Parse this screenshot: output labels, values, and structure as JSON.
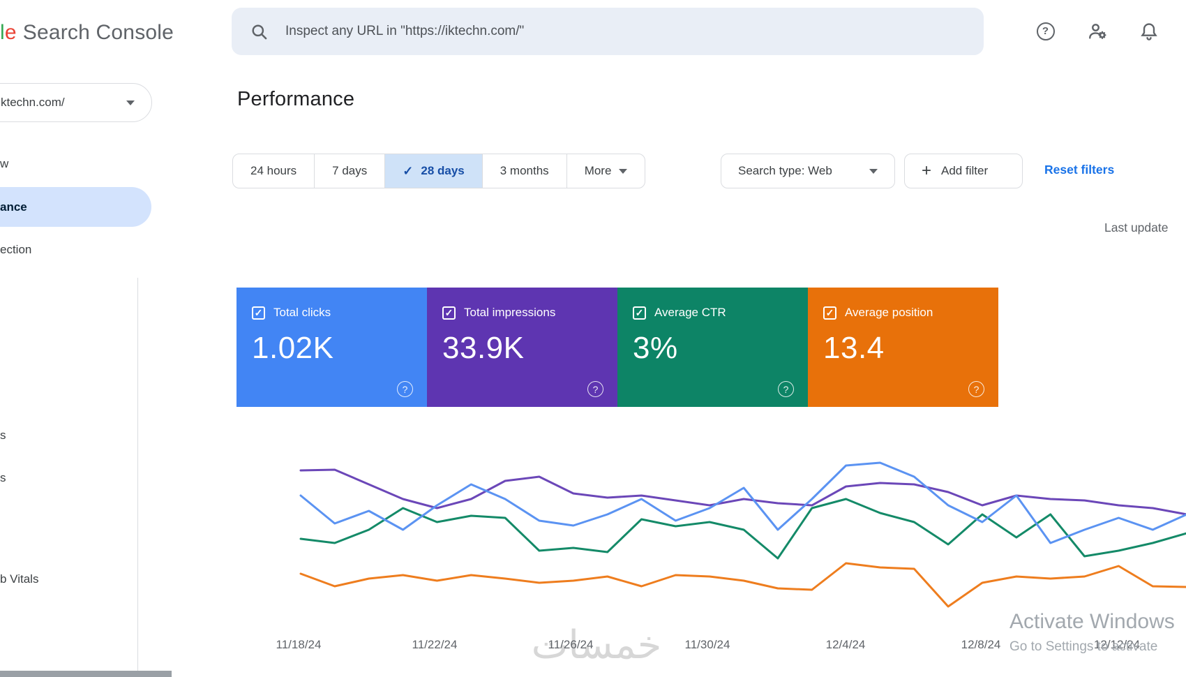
{
  "header": {
    "logo_fragment_l": "l",
    "logo_fragment_e": "e",
    "logo_text": "Search Console",
    "search_placeholder": "Inspect any URL in \"https://iktechn.com/\""
  },
  "sidebar": {
    "property": "ktechn.com/",
    "items": [
      {
        "label": "w",
        "active": false
      },
      {
        "label": "ance",
        "active": true
      },
      {
        "label": "ection",
        "active": false
      },
      {
        "label": "s",
        "active": false
      },
      {
        "label": "s",
        "active": false
      },
      {
        "label": "b Vitals",
        "active": false
      }
    ]
  },
  "page": {
    "title": "Performance",
    "last_update": "Last update"
  },
  "filters": {
    "ranges": [
      {
        "label": "24 hours",
        "selected": false
      },
      {
        "label": "7 days",
        "selected": false
      },
      {
        "label": "28 days",
        "selected": true
      },
      {
        "label": "3 months",
        "selected": false
      }
    ],
    "more_label": "More",
    "search_type_label": "Search type: Web",
    "add_filter_label": "Add filter",
    "reset_label": "Reset filters"
  },
  "glyphs": {
    "check": "✓",
    "plus": "+",
    "question": "?"
  },
  "metrics": [
    {
      "label": "Total clicks",
      "value": "1.02K",
      "color": "#4285f4",
      "checked": true
    },
    {
      "label": "Total impressions",
      "value": "33.9K",
      "color": "#5e35b1",
      "checked": true
    },
    {
      "label": "Average CTR",
      "value": "3%",
      "color": "#0d8466",
      "checked": true
    },
    {
      "label": "Average position",
      "value": "13.4",
      "color": "#e8710a",
      "checked": true
    }
  ],
  "chart_data": {
    "type": "line",
    "x_labels": [
      "11/18/24",
      "11/22/24",
      "11/26/24",
      "11/30/24",
      "12/4/24",
      "12/8/24",
      "12/12/24"
    ],
    "grid": false,
    "legend_position": "none",
    "y_units": "svg-px (no y-axis shown in UI; values are relative curve heights, lower = higher metric)",
    "series": [
      {
        "name": "Total clicks",
        "color": "#5b93f2",
        "y": [
          65,
          105,
          87,
          114,
          79,
          49,
          70,
          101,
          108,
          92,
          70,
          101,
          83,
          54,
          114,
          70,
          22,
          18,
          38,
          79,
          103,
          65,
          133,
          114,
          97,
          114,
          92
        ]
      },
      {
        "name": "Total impressions",
        "color": "#6b47b8",
        "y": [
          29,
          28,
          49,
          70,
          83,
          70,
          44,
          38,
          62,
          68,
          65,
          72,
          79,
          70,
          76,
          79,
          52,
          47,
          49,
          60,
          79,
          65,
          70,
          72,
          79,
          83,
          92
        ]
      },
      {
        "name": "Average CTR",
        "color": "#148a68",
        "y": [
          127,
          133,
          114,
          83,
          103,
          94,
          97,
          144,
          140,
          146,
          99,
          109,
          103,
          114,
          155,
          83,
          70,
          90,
          103,
          135,
          92,
          125,
          92,
          152,
          144,
          133,
          119
        ]
      },
      {
        "name": "Average position",
        "color": "#ee7d1e",
        "y": [
          177,
          195,
          184,
          179,
          187,
          179,
          184,
          190,
          187,
          181,
          195,
          179,
          181,
          187,
          198,
          200,
          162,
          168,
          170,
          224,
          190,
          181,
          184,
          181,
          166,
          195,
          196
        ]
      }
    ]
  },
  "watermark": {
    "text": "خمسات"
  },
  "system_overlay": {
    "line1": "Activate Windows",
    "line2": "Go to Settings to activate"
  }
}
